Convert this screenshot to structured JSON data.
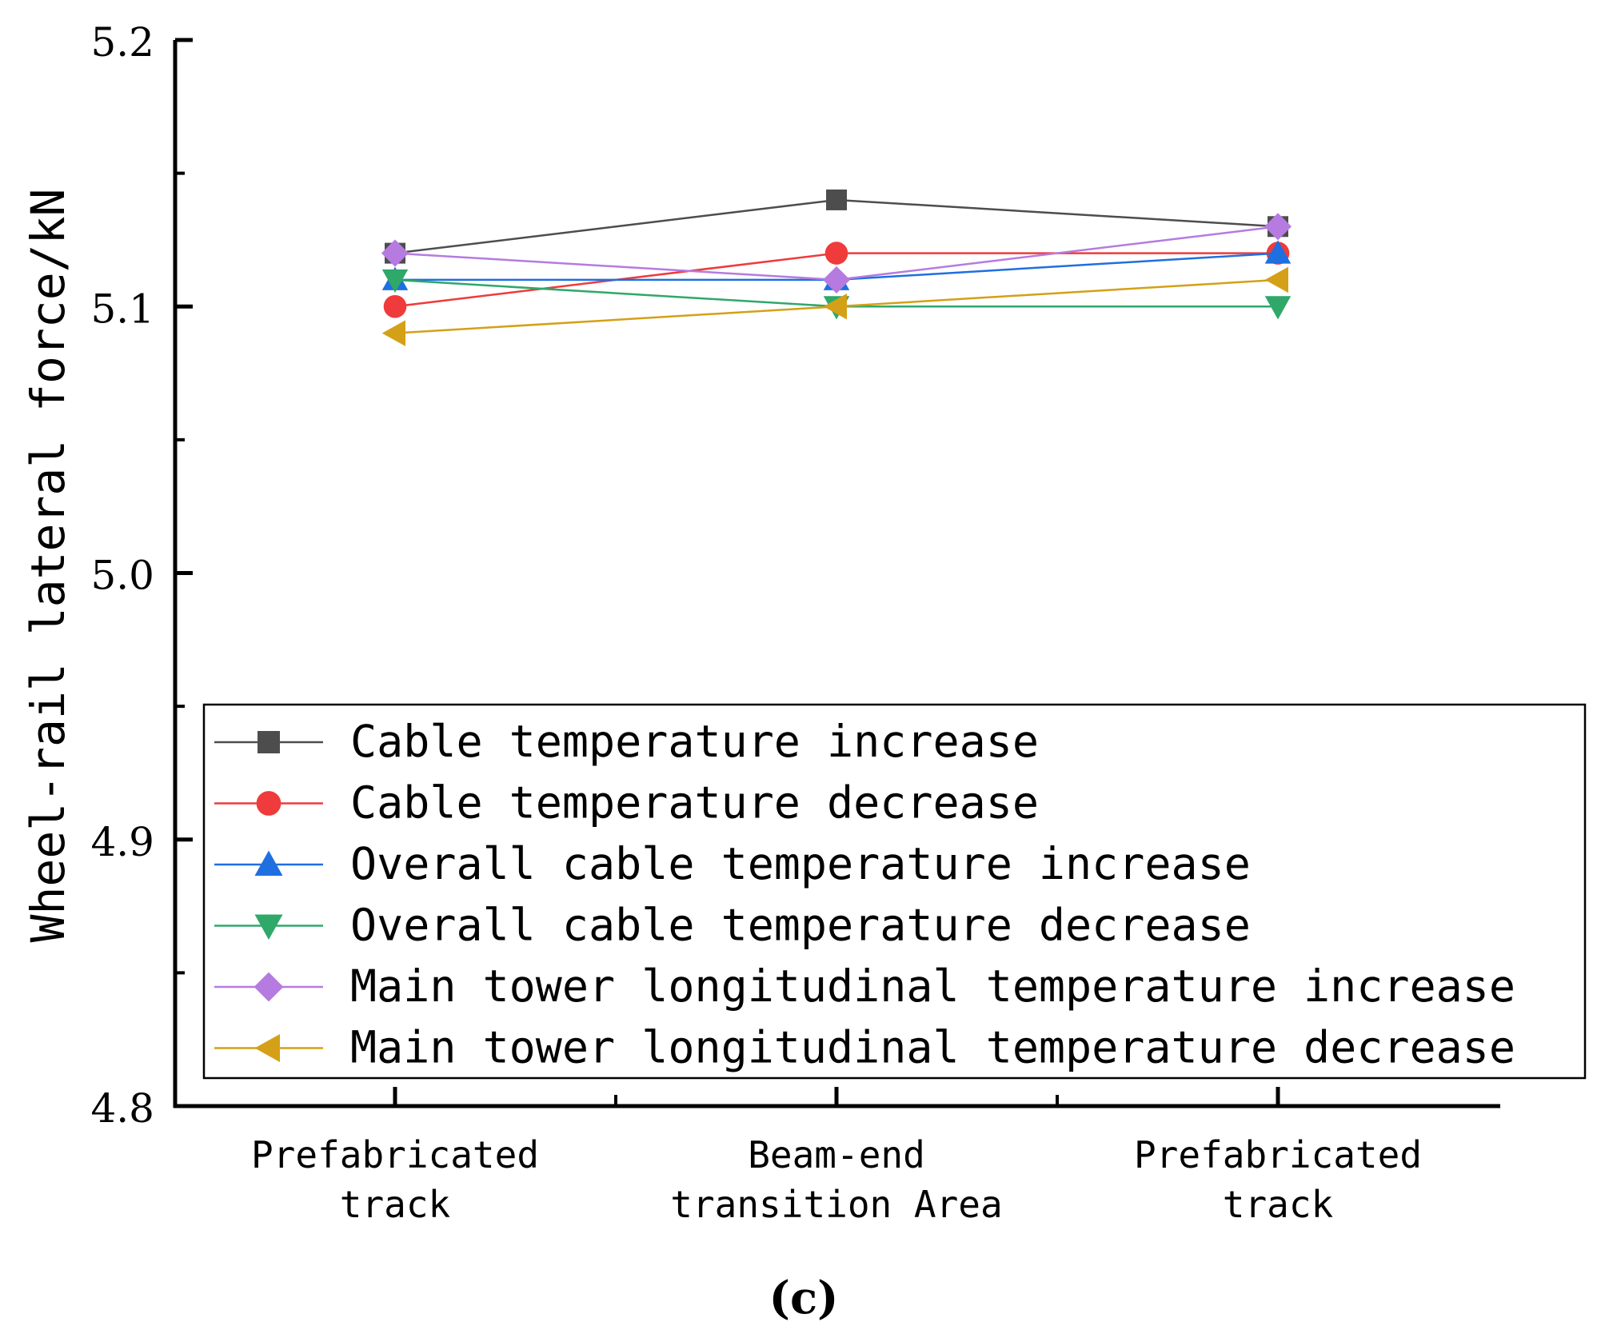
{
  "chart_data": {
    "type": "line",
    "ylabel": "Wheel-rail lateral force/kN",
    "xlabel": "",
    "panel_label": "(c)",
    "ylim": [
      4.8,
      5.2
    ],
    "yticks": [
      "4.8",
      "4.9",
      "5.0",
      "5.1",
      "5.2"
    ],
    "categories": [
      [
        "Prefabricated",
        "track"
      ],
      [
        "Beam-end",
        "transition Area"
      ],
      [
        "Prefabricated",
        "track"
      ]
    ],
    "legend_position": "bottom-right",
    "series": [
      {
        "name": "Cable temperature increase",
        "marker": "square",
        "color": "#4d4d4d",
        "values": [
          5.12,
          5.14,
          5.13
        ]
      },
      {
        "name": "Cable temperature decrease",
        "marker": "circle",
        "color": "#ef3b3b",
        "values": [
          5.1,
          5.12,
          5.12
        ]
      },
      {
        "name": "Overall cable temperature increase",
        "marker": "triangle-up",
        "color": "#1f6fe0",
        "values": [
          5.11,
          5.11,
          5.12
        ]
      },
      {
        "name": "Overall cable temperature decrease",
        "marker": "triangle-down",
        "color": "#2fa86a",
        "values": [
          5.11,
          5.1,
          5.1
        ]
      },
      {
        "name": "Main tower longitudinal temperature increase",
        "marker": "diamond",
        "color": "#b57be0",
        "values": [
          5.12,
          5.11,
          5.13
        ]
      },
      {
        "name": "Main tower longitudinal temperature decrease",
        "marker": "triangle-left",
        "color": "#d4a017",
        "values": [
          5.09,
          5.1,
          5.11
        ]
      }
    ]
  }
}
